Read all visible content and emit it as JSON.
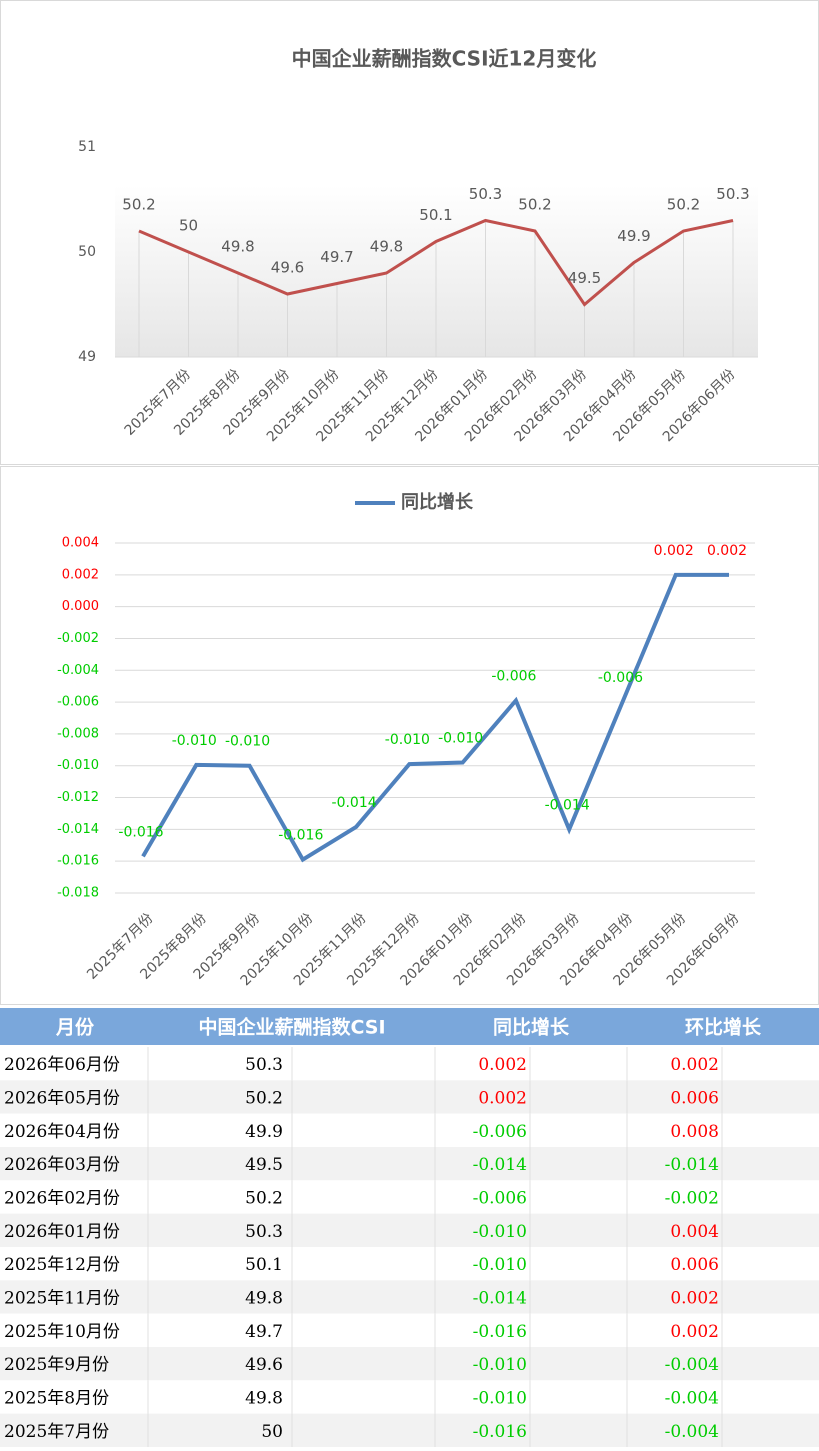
{
  "chart_data": [
    {
      "type": "line",
      "title": "中国企业薪酬指数CSI近12月变化",
      "categories": [
        null,
        "2025年7月份",
        "2025年8月份",
        "2025年9月份",
        "2025年10月份",
        "2025年11月份",
        "2025年12月份",
        "2026年01月份",
        "2026年02月份",
        "2026年03月份",
        "2026年04月份",
        "2026年05月份",
        "2026年06月份"
      ],
      "values": [
        50.2,
        50,
        49.8,
        49.6,
        49.7,
        49.8,
        50.1,
        50.3,
        50.2,
        49.5,
        49.9,
        50.2,
        50.3
      ],
      "color": "#c0504d",
      "ylim": [
        49,
        51
      ],
      "yticks": [
        49,
        50,
        51
      ],
      "grid": true
    },
    {
      "type": "line",
      "categories": [
        "2025年7月份",
        "2025年8月份",
        "2025年9月份",
        "2025年10月份",
        "2025年11月份",
        "2025年12月份",
        "2026年01月份",
        "2026年02月份",
        "2026年03月份",
        "2026年04月份",
        "2026年05月份",
        "2026年06月份"
      ],
      "series": [
        {
          "name": "同比增长",
          "color": "#4f81bd",
          "values": [
            -0.0157,
            -0.00995,
            -0.01,
            -0.0159,
            -0.01385,
            -0.0099,
            -0.0098,
            -0.0059,
            -0.014,
            -0.006,
            0.002,
            0.002
          ],
          "value_labels": [
            "-0.016",
            "-0.010",
            "-0.010",
            "-0.016",
            "-0.014",
            "-0.010",
            "-0.010",
            "-0.006",
            "-0.014",
            "-0.006",
            "0.002",
            "0.002"
          ]
        }
      ],
      "ylim": [
        -0.018,
        0.004
      ],
      "yticks": [
        -0.018,
        -0.016,
        -0.014,
        -0.012,
        {
          "value": -0.01,
          "label": "-0.010"
        },
        -0.008,
        -0.006,
        -0.004,
        -0.002,
        {
          "value": 0,
          "label": "0.000"
        },
        0.002,
        0.004
      ],
      "grid": true,
      "legend": "top",
      "positive_color": "#ff0000",
      "negative_color": "#00cc00"
    }
  ],
  "table": {
    "header": [
      "月份",
      "中国企业薪酬指数CSI",
      "同比增长",
      "环比增长"
    ],
    "rows": [
      [
        "2026年06月份",
        "50.3",
        "0.002",
        "0.002"
      ],
      [
        "2026年05月份",
        "50.2",
        "0.002",
        "0.006"
      ],
      [
        "2026年04月份",
        "49.9",
        "-0.006",
        "0.008"
      ],
      [
        "2026年03月份",
        "49.5",
        "-0.014",
        "-0.014"
      ],
      [
        "2026年02月份",
        "50.2",
        "-0.006",
        "-0.002"
      ],
      [
        "2026年01月份",
        "50.3",
        "-0.010",
        "0.004"
      ],
      [
        "2025年12月份",
        "50.1",
        "-0.010",
        "0.006"
      ],
      [
        "2025年11月份",
        "49.8",
        "-0.014",
        "0.002"
      ],
      [
        "2025年10月份",
        "49.7",
        "-0.016",
        "0.002"
      ],
      [
        "2025年9月份",
        "49.6",
        "-0.010",
        "-0.004"
      ],
      [
        "2025年8月份",
        "49.8",
        "-0.010",
        "-0.004"
      ],
      [
        "2025年7月份",
        "50",
        "-0.016",
        "-0.004"
      ]
    ]
  }
}
